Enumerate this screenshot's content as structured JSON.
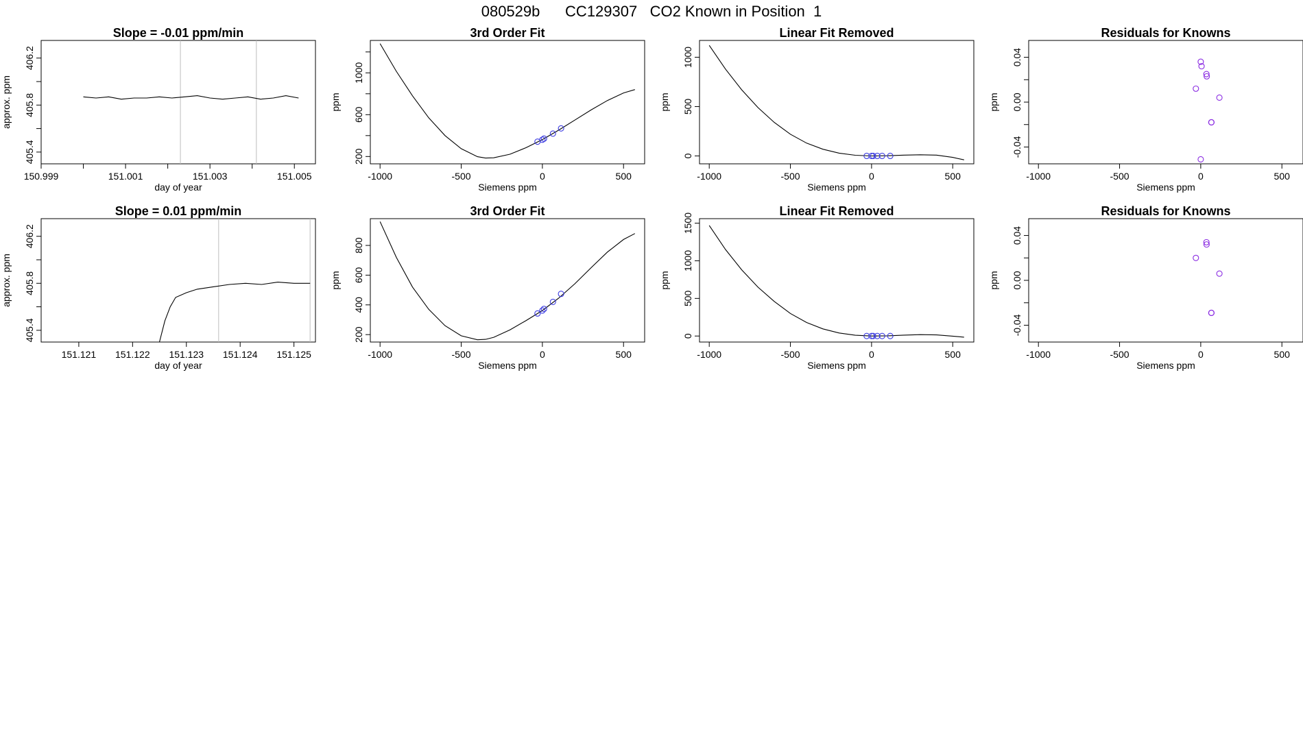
{
  "header": {
    "title": "080529b      CC129307   CO2 Known in Position  1"
  },
  "chart_data": [
    {
      "type": "line",
      "title": "Slope =  -0.01  ppm/min",
      "xlabel": "day of year",
      "ylabel": "approx. ppm",
      "xlim": [
        150.999,
        151.0055
      ],
      "ylim": [
        405.3,
        406.35
      ],
      "xticks": [
        150.999,
        151.0,
        151.001,
        151.002,
        151.003,
        151.004,
        151.005
      ],
      "xtick_labels": [
        "150.999",
        "",
        "151.001",
        "",
        "151.003",
        "",
        "151.005"
      ],
      "yticks": [
        405.4,
        405.6,
        405.8,
        406.0,
        406.2
      ],
      "ytick_labels": [
        "405.4",
        "",
        "405.8",
        "",
        "406.2"
      ],
      "vlines": [
        151.0023,
        151.0041
      ],
      "series": [
        {
          "name": "trace",
          "x": [
            151.0,
            151.0003,
            151.0006,
            151.0009,
            151.0012,
            151.0015,
            151.0018,
            151.0021,
            151.0024,
            151.0027,
            151.003,
            151.0033,
            151.0036,
            151.0039,
            151.0042,
            151.0045,
            151.0048,
            151.0051
          ],
          "values": [
            405.87,
            405.86,
            405.87,
            405.85,
            405.86,
            405.86,
            405.87,
            405.86,
            405.87,
            405.88,
            405.86,
            405.85,
            405.86,
            405.87,
            405.85,
            405.86,
            405.88,
            405.86
          ]
        }
      ]
    },
    {
      "type": "line",
      "title": "3rd Order Fit",
      "xlabel": "Siemens ppm",
      "ylabel": "ppm",
      "xlim": [
        -1060,
        630
      ],
      "ylim": [
        130,
        1310
      ],
      "xticks": [
        -1000,
        -500,
        0,
        500
      ],
      "xtick_labels": [
        "-1000",
        "-500",
        "0",
        "500"
      ],
      "yticks": [
        200,
        400,
        600,
        800,
        1000,
        1200
      ],
      "ytick_labels": [
        "200",
        "",
        "600",
        "",
        "1000",
        ""
      ],
      "curve": {
        "x": [
          -1000,
          -900,
          -800,
          -700,
          -600,
          -500,
          -400,
          -350,
          -300,
          -200,
          -100,
          0,
          100,
          200,
          300,
          400,
          500,
          570
        ],
        "values": [
          1280,
          1015,
          780,
          570,
          400,
          275,
          198,
          185,
          188,
          222,
          285,
          362,
          452,
          548,
          645,
          735,
          808,
          840
        ]
      },
      "points": {
        "x": [
          -30,
          0,
          10,
          65,
          115
        ],
        "values": [
          342,
          361,
          371,
          419,
          469
        ]
      }
    },
    {
      "type": "line",
      "title": "Linear Fit Removed",
      "xlabel": "Siemens ppm",
      "ylabel": "ppm",
      "xlim": [
        -1060,
        630
      ],
      "ylim": [
        -80,
        1170
      ],
      "xticks": [
        -1000,
        -500,
        0,
        500
      ],
      "xtick_labels": [
        "-1000",
        "-500",
        "0",
        "500"
      ],
      "yticks": [
        0,
        500,
        1000
      ],
      "ytick_labels": [
        "0",
        "500",
        "1000"
      ],
      "curve": {
        "x": [
          -1000,
          -900,
          -800,
          -700,
          -600,
          -500,
          -400,
          -300,
          -200,
          -100,
          0,
          100,
          200,
          300,
          400,
          500,
          570
        ],
        "values": [
          1120,
          880,
          670,
          490,
          340,
          220,
          130,
          68,
          28,
          7,
          0,
          2,
          8,
          12,
          8,
          -15,
          -40
        ]
      },
      "points": {
        "x": [
          -30,
          0,
          10,
          35,
          65,
          115
        ],
        "values": [
          0,
          0,
          0,
          0,
          0,
          0
        ]
      }
    },
    {
      "type": "scatter",
      "title": "Residuals for Knowns",
      "xlabel": "Siemens ppm",
      "ylabel": "ppm",
      "xlim": [
        -1060,
        630
      ],
      "ylim": [
        -0.055,
        0.055
      ],
      "xticks": [
        -1000,
        -500,
        0,
        500
      ],
      "xtick_labels": [
        "-1000",
        "-500",
        "0",
        "500"
      ],
      "yticks": [
        -0.04,
        -0.02,
        0.0,
        0.02,
        0.04
      ],
      "ytick_labels": [
        "-0.04",
        "",
        "0.00",
        "",
        "0.04"
      ],
      "points": {
        "x": [
          0,
          5,
          35,
          37,
          -30,
          115,
          65,
          66,
          0
        ],
        "values": [
          0.036,
          0.032,
          0.025,
          0.023,
          0.012,
          0.004,
          -0.018,
          -0.018,
          -0.051
        ]
      }
    },
    {
      "type": "line",
      "title": "Slope =  0.01  ppm/min",
      "xlabel": "day of year",
      "ylabel": "approx. ppm",
      "xlim": [
        151.1203,
        151.1254
      ],
      "ylim": [
        405.3,
        406.35
      ],
      "xticks": [
        151.121,
        151.122,
        151.123,
        151.124,
        151.125
      ],
      "xtick_labels": [
        "151.121",
        "151.122",
        "151.123",
        "151.124",
        "151.125"
      ],
      "yticks": [
        405.4,
        405.6,
        405.8,
        406.0,
        406.2
      ],
      "ytick_labels": [
        "405.4",
        "",
        "405.8",
        "",
        "406.2"
      ],
      "vlines": [
        151.1236,
        151.1253
      ],
      "series": [
        {
          "name": "trace",
          "x": [
            151.1225,
            151.1226,
            151.1227,
            151.1228,
            151.123,
            151.1232,
            151.1235,
            151.1238,
            151.1241,
            151.1244,
            151.1247,
            151.125,
            151.1253
          ],
          "values": [
            405.3,
            405.48,
            405.6,
            405.68,
            405.72,
            405.75,
            405.77,
            405.79,
            405.8,
            405.79,
            405.81,
            405.8,
            405.8
          ]
        }
      ]
    },
    {
      "type": "line",
      "title": "3rd Order Fit",
      "xlabel": "Siemens ppm",
      "ylabel": "ppm",
      "xlim": [
        -1060,
        630
      ],
      "ylim": [
        150,
        980
      ],
      "xticks": [
        -1000,
        -500,
        0,
        500
      ],
      "xtick_labels": [
        "-1000",
        "-500",
        "0",
        "500"
      ],
      "yticks": [
        200,
        400,
        600,
        800
      ],
      "ytick_labels": [
        "200",
        "400",
        "600",
        "800"
      ],
      "curve": {
        "x": [
          -1000,
          -900,
          -800,
          -700,
          -600,
          -500,
          -400,
          -350,
          -300,
          -200,
          -100,
          0,
          100,
          200,
          300,
          400,
          500,
          570
        ],
        "values": [
          960,
          720,
          520,
          370,
          260,
          192,
          165,
          168,
          182,
          232,
          295,
          362,
          445,
          542,
          650,
          755,
          840,
          880
        ]
      },
      "points": {
        "x": [
          -30,
          0,
          10,
          65,
          115
        ],
        "values": [
          342,
          362,
          373,
          420,
          474
        ]
      }
    },
    {
      "type": "line",
      "title": "Linear Fit Removed",
      "xlabel": "Siemens ppm",
      "ylabel": "ppm",
      "xlim": [
        -1060,
        630
      ],
      "ylim": [
        -80,
        1560
      ],
      "xticks": [
        -1000,
        -500,
        0,
        500
      ],
      "xtick_labels": [
        "-1000",
        "-500",
        "0",
        "500"
      ],
      "yticks": [
        0,
        500,
        1000,
        1500
      ],
      "ytick_labels": [
        "0",
        "500",
        "1000",
        "1500"
      ],
      "curve": {
        "x": [
          -1000,
          -900,
          -800,
          -700,
          -600,
          -500,
          -400,
          -300,
          -200,
          -100,
          0,
          100,
          200,
          300,
          400,
          500,
          570
        ],
        "values": [
          1470,
          1150,
          880,
          650,
          460,
          300,
          180,
          95,
          40,
          10,
          0,
          3,
          12,
          18,
          15,
          -2,
          -15
        ]
      },
      "points": {
        "x": [
          -30,
          0,
          10,
          35,
          65,
          115
        ],
        "values": [
          0,
          0,
          0,
          0,
          0,
          0
        ]
      }
    },
    {
      "type": "scatter",
      "title": "Residuals for Knowns",
      "xlabel": "Siemens ppm",
      "ylabel": "ppm",
      "xlim": [
        -1060,
        630
      ],
      "ylim": [
        -0.055,
        0.055
      ],
      "xticks": [
        -1000,
        -500,
        0,
        500
      ],
      "xtick_labels": [
        "-1000",
        "-500",
        "0",
        "500"
      ],
      "yticks": [
        -0.04,
        -0.02,
        0.0,
        0.02,
        0.04
      ],
      "ytick_labels": [
        "-0.04",
        "",
        "0.00",
        "",
        "0.04"
      ],
      "points": {
        "x": [
          35,
          36,
          -30,
          115,
          65,
          66
        ],
        "values": [
          0.034,
          0.032,
          0.02,
          0.006,
          -0.029,
          -0.029
        ]
      }
    }
  ]
}
